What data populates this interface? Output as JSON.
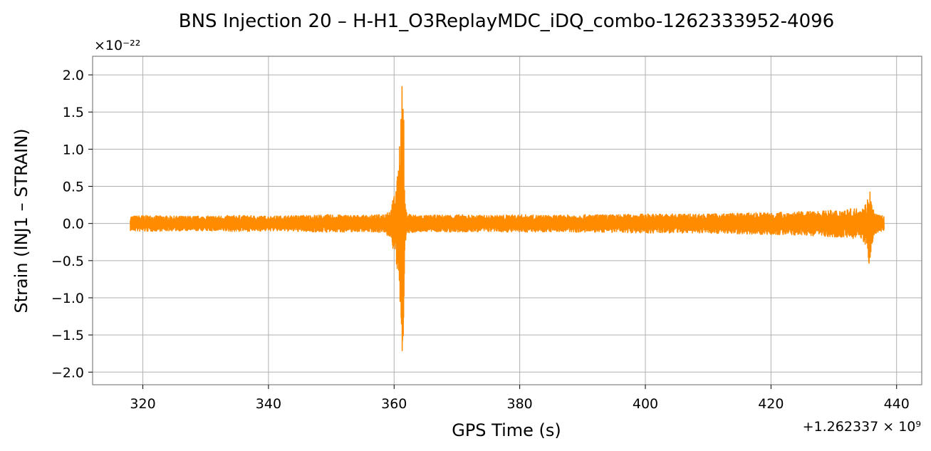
{
  "chart_data": {
    "type": "line",
    "title": "BNS Injection 20 – H-H1_O3ReplayMDC_iDQ_combo-1262333952-4096",
    "xlabel": "GPS Time (s)",
    "ylabel": "Strain (INJ1 – STRAIN)",
    "x_offset_label": "+1.262337 × 10⁹",
    "y_scale_label": "×10⁻²²",
    "xlim": [
      312,
      444
    ],
    "ylim": [
      -2.17,
      2.25
    ],
    "x_ticks": [
      320,
      340,
      360,
      380,
      400,
      420,
      440
    ],
    "x_tick_labels": [
      "320",
      "340",
      "360",
      "380",
      "400",
      "420",
      "440"
    ],
    "y_ticks": [
      -2.0,
      -1.5,
      -1.0,
      -0.5,
      0.0,
      0.5,
      1.0,
      1.5,
      2.0
    ],
    "y_tick_labels": [
      "−2.0",
      "−1.5",
      "−1.0",
      "−0.5",
      "0.0",
      "0.5",
      "1.0",
      "1.5",
      "2.0"
    ],
    "grid": true,
    "series": [
      {
        "color": "#ff8c00",
        "x": [
          318.0,
          320,
          325,
          330,
          335,
          340,
          345,
          350,
          355,
          358,
          359.5,
          360.5,
          361.0,
          361.3,
          361.5,
          361.6,
          361.7,
          362.0,
          363,
          365,
          370,
          375,
          380,
          385,
          390,
          395,
          400,
          405,
          410,
          415,
          420,
          425,
          430,
          433,
          434.5,
          435.3,
          435.7,
          435.9,
          436.1,
          436.5,
          437.0,
          438.0
        ],
        "y_max": [
          0.1,
          0.11,
          0.1,
          0.1,
          0.11,
          0.1,
          0.11,
          0.12,
          0.11,
          0.12,
          0.2,
          0.6,
          1.4,
          2.06,
          1.8,
          0.9,
          0.3,
          0.15,
          0.12,
          0.11,
          0.12,
          0.11,
          0.12,
          0.11,
          0.12,
          0.12,
          0.13,
          0.13,
          0.13,
          0.14,
          0.15,
          0.16,
          0.18,
          0.2,
          0.22,
          0.3,
          0.54,
          0.35,
          0.25,
          0.15,
          0.12,
          0.1
        ],
        "y_min": [
          -0.1,
          -0.11,
          -0.1,
          -0.1,
          -0.11,
          -0.1,
          -0.11,
          -0.12,
          -0.11,
          -0.12,
          -0.2,
          -0.65,
          -1.3,
          -1.97,
          -1.7,
          -0.85,
          -0.3,
          -0.15,
          -0.12,
          -0.11,
          -0.12,
          -0.11,
          -0.12,
          -0.11,
          -0.12,
          -0.12,
          -0.13,
          -0.13,
          -0.13,
          -0.14,
          -0.15,
          -0.16,
          -0.18,
          -0.2,
          -0.22,
          -0.32,
          -0.63,
          -0.4,
          -0.28,
          -0.16,
          -0.12,
          -0.1
        ]
      }
    ]
  }
}
